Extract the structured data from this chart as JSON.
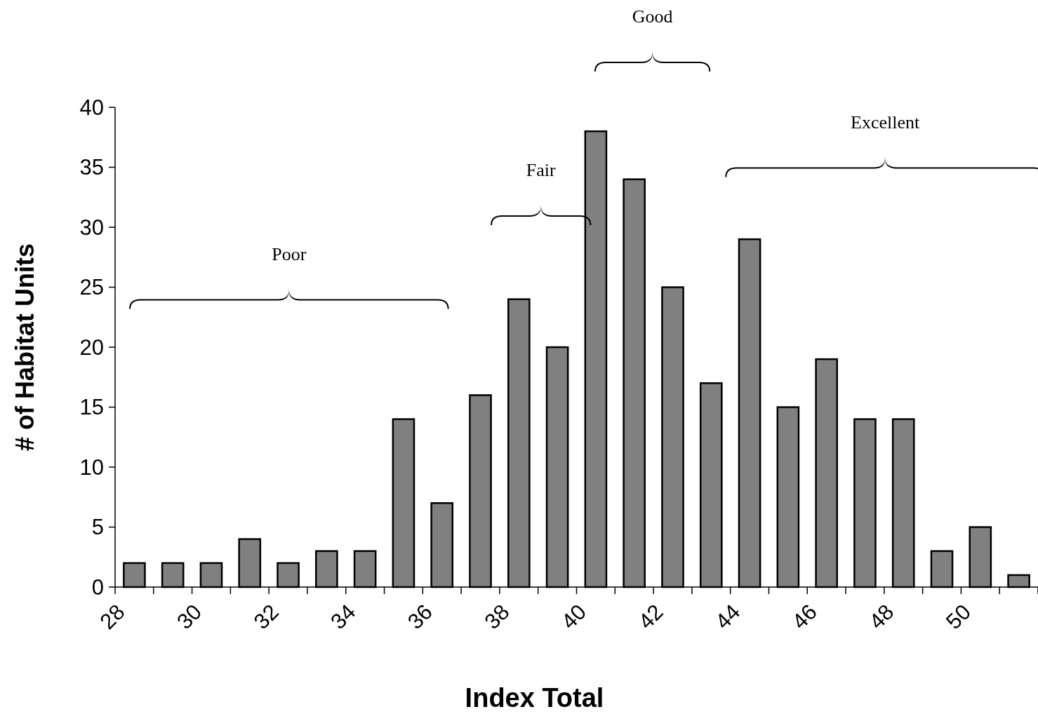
{
  "chart_data": {
    "type": "bar",
    "xlabel": "Index Total",
    "ylabel": "# of Habitat Units",
    "categories": [
      "28",
      null,
      "30",
      null,
      "32",
      null,
      "34",
      null,
      "36",
      null,
      "38",
      null,
      "40",
      null,
      "42",
      null,
      "44",
      null,
      "46",
      null,
      "48",
      null,
      "50",
      null
    ],
    "values": [
      2,
      2,
      2,
      4,
      2,
      3,
      3,
      14,
      7,
      16,
      24,
      20,
      38,
      34,
      25,
      17,
      29,
      15,
      19,
      14,
      14,
      3,
      5,
      1
    ],
    "color": "#808080",
    "ylim": [
      0,
      40
    ],
    "yticks": [
      0,
      5,
      10,
      15,
      20,
      25,
      30,
      35,
      40
    ],
    "annotations": [
      "Poor",
      "Fair",
      "Good",
      "Excellent"
    ]
  }
}
